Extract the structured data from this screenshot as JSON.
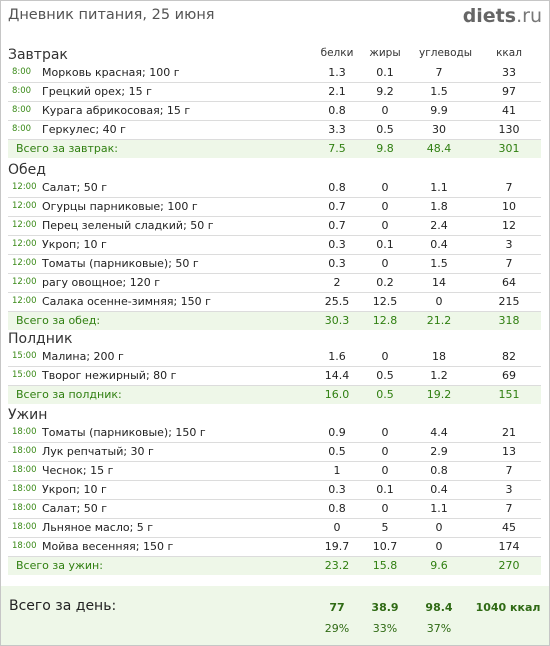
{
  "header": {
    "title": "Дневник питания, 25 июня",
    "logo_main": "diets",
    "logo_suffix": ".ru"
  },
  "columns": {
    "protein": "белки",
    "fat": "жиры",
    "carbs": "углеводы",
    "kcal": "ккал"
  },
  "meals": [
    {
      "name": "Завтрак",
      "items": [
        {
          "time": "8:00",
          "food": "Морковь красная; 100 г",
          "p": "1.3",
          "f": "0.1",
          "c": "7",
          "k": "33"
        },
        {
          "time": "8:00",
          "food": "Грецкий орех; 15 г",
          "p": "2.1",
          "f": "9.2",
          "c": "1.5",
          "k": "97"
        },
        {
          "time": "8:00",
          "food": "Курага абрикосовая; 15 г",
          "p": "0.8",
          "f": "0",
          "c": "9.9",
          "k": "41"
        },
        {
          "time": "8:00",
          "food": "Геркулес; 40 г",
          "p": "3.3",
          "f": "0.5",
          "c": "30",
          "k": "130"
        }
      ],
      "total": {
        "label": "Всего за завтрак:",
        "p": "7.5",
        "f": "9.8",
        "c": "48.4",
        "k": "301"
      }
    },
    {
      "name": "Обед",
      "items": [
        {
          "time": "12:00",
          "food": "Салат; 50 г",
          "p": "0.8",
          "f": "0",
          "c": "1.1",
          "k": "7"
        },
        {
          "time": "12:00",
          "food": "Огурцы парниковые; 100 г",
          "p": "0.7",
          "f": "0",
          "c": "1.8",
          "k": "10"
        },
        {
          "time": "12:00",
          "food": "Перец зеленый сладкий; 50 г",
          "p": "0.7",
          "f": "0",
          "c": "2.4",
          "k": "12"
        },
        {
          "time": "12:00",
          "food": "Укроп; 10 г",
          "p": "0.3",
          "f": "0.1",
          "c": "0.4",
          "k": "3"
        },
        {
          "time": "12:00",
          "food": "Томаты (парниковые); 50 г",
          "p": "0.3",
          "f": "0",
          "c": "1.5",
          "k": "7"
        },
        {
          "time": "12:00",
          "food": "рагу овощное; 120 г",
          "p": "2",
          "f": "0.2",
          "c": "14",
          "k": "64"
        },
        {
          "time": "12:00",
          "food": "Салака осенне-зимняя; 150 г",
          "p": "25.5",
          "f": "12.5",
          "c": "0",
          "k": "215"
        }
      ],
      "total": {
        "label": "Всего за обед:",
        "p": "30.3",
        "f": "12.8",
        "c": "21.2",
        "k": "318"
      }
    },
    {
      "name": "Полдник",
      "items": [
        {
          "time": "15:00",
          "food": "Малина; 200 г",
          "p": "1.6",
          "f": "0",
          "c": "18",
          "k": "82"
        },
        {
          "time": "15:00",
          "food": "Творог нежирный; 80 г",
          "p": "14.4",
          "f": "0.5",
          "c": "1.2",
          "k": "69"
        }
      ],
      "total": {
        "label": "Всего за полдник:",
        "p": "16.0",
        "f": "0.5",
        "c": "19.2",
        "k": "151"
      }
    },
    {
      "name": "Ужин",
      "items": [
        {
          "time": "18:00",
          "food": "Томаты (парниковые); 150 г",
          "p": "0.9",
          "f": "0",
          "c": "4.4",
          "k": "21"
        },
        {
          "time": "18:00",
          "food": "Лук репчатый; 30 г",
          "p": "0.5",
          "f": "0",
          "c": "2.9",
          "k": "13"
        },
        {
          "time": "18:00",
          "food": "Чеснок; 15 г",
          "p": "1",
          "f": "0",
          "c": "0.8",
          "k": "7"
        },
        {
          "time": "18:00",
          "food": "Укроп; 10 г",
          "p": "0.3",
          "f": "0.1",
          "c": "0.4",
          "k": "3"
        },
        {
          "time": "18:00",
          "food": "Салат; 50 г",
          "p": "0.8",
          "f": "0",
          "c": "1.1",
          "k": "7"
        },
        {
          "time": "18:00",
          "food": "Льняное масло; 5 г",
          "p": "0",
          "f": "5",
          "c": "0",
          "k": "45"
        },
        {
          "time": "18:00",
          "food": "Мойва весенняя; 150 г",
          "p": "19.7",
          "f": "10.7",
          "c": "0",
          "k": "174"
        }
      ],
      "total": {
        "label": "Всего за ужин:",
        "p": "23.2",
        "f": "15.8",
        "c": "9.6",
        "k": "270"
      }
    }
  ],
  "day": {
    "label": "Всего за день:",
    "p": "77",
    "f": "38.9",
    "c": "98.4",
    "k": "1040 ккал",
    "p_pct": "29%",
    "f_pct": "33%",
    "c_pct": "37%"
  },
  "colors": {
    "accent_green": "#2f7f10",
    "total_bg": "#eef7e8",
    "time_green": "#3a8a18"
  }
}
